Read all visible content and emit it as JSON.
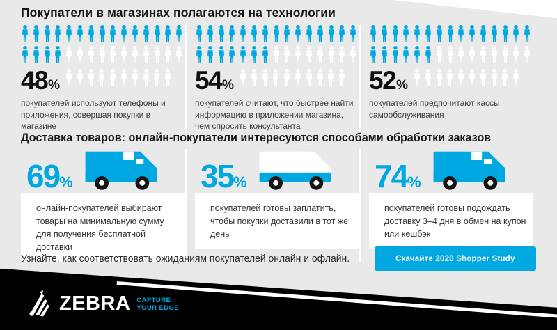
{
  "colors": {
    "blue": "#00a8e1",
    "panel_gray": "#e9e9e9",
    "band_black": "#000000",
    "text_dark": "#161616",
    "text_body": "#3d3d3d"
  },
  "section_store": {
    "title": "Покупатели в магазинах полагаются на технологии",
    "stats": [
      {
        "percent": "48",
        "unit": "%",
        "description": "покупателей используют телефоны и приложения, совершая покупки в магазине",
        "icons_per_row": 15,
        "row1_filled": 15,
        "row2_filled": 4,
        "row3_icons": 10
      },
      {
        "percent": "54",
        "unit": "%",
        "description": "покупателей считают, что быстрее найти информацию в приложении магазина, чем спросить консультанта",
        "icons_per_row": 15,
        "row1_filled": 15,
        "row2_filled": 7,
        "row3_icons": 10
      },
      {
        "percent": "52",
        "unit": "%",
        "description": "покупателей предпочитают кассы самообслуживания",
        "icons_per_row": 15,
        "row1_filled": 15,
        "row2_filled": 6,
        "row3_icons": 10
      }
    ]
  },
  "section_delivery": {
    "title": "Доставка товаров: онлайн-покупатели интересуются способами обработки заказов",
    "stats": [
      {
        "percent": "69",
        "unit": "%",
        "truck_style": "solid",
        "description": "онлайн-покупателей выбирают товары на минимальную сумму для получения бесплатной доставки"
      },
      {
        "percent": "35",
        "unit": "%",
        "truck_style": "outline",
        "description": "покупателей готовы заплатить, чтобы покупки доставили в тот же день"
      },
      {
        "percent": "74",
        "unit": "%",
        "truck_style": "solid",
        "description": "покупателей готовы подождать доставку 3–4 дня в обмен на купон или кешбэк"
      }
    ]
  },
  "footer_cta": {
    "text": "Узнайте, как соответствовать ожиданиям покупателей онлайн и офлайн.",
    "button_label": "Скачайте 2020 Shopper Study"
  },
  "brand": {
    "name": "ZEBRA",
    "tagline_line1": "CAPTURE",
    "tagline_line2": "YOUR EDGE"
  },
  "chart_data": [
    {
      "type": "bar",
      "style": "pictograph-people",
      "title": "Покупатели в магазинах полагаются на технологии",
      "categories": [
        "покупателей используют телефоны и приложения, совершая покупки в магазине",
        "покупателей считают, что быстрее найти информацию в приложении магазина, чем спросить консультанта",
        "покупателей предпочитают кассы самообслуживания"
      ],
      "values": [
        48,
        54,
        52
      ],
      "unit": "%"
    },
    {
      "type": "bar",
      "style": "pictograph-trucks",
      "title": "Доставка товаров: онлайн-покупатели интересуются способами обработки заказов",
      "categories": [
        "онлайн-покупателей выбирают товары на минимальную сумму для получения бесплатной доставки",
        "покупателей готовы заплатить, чтобы покупки доставили в тот же день",
        "покупателей готовы подождать доставку 3–4 дня в обмен на купон или кешбэк"
      ],
      "values": [
        69,
        35,
        74
      ],
      "unit": "%"
    }
  ]
}
